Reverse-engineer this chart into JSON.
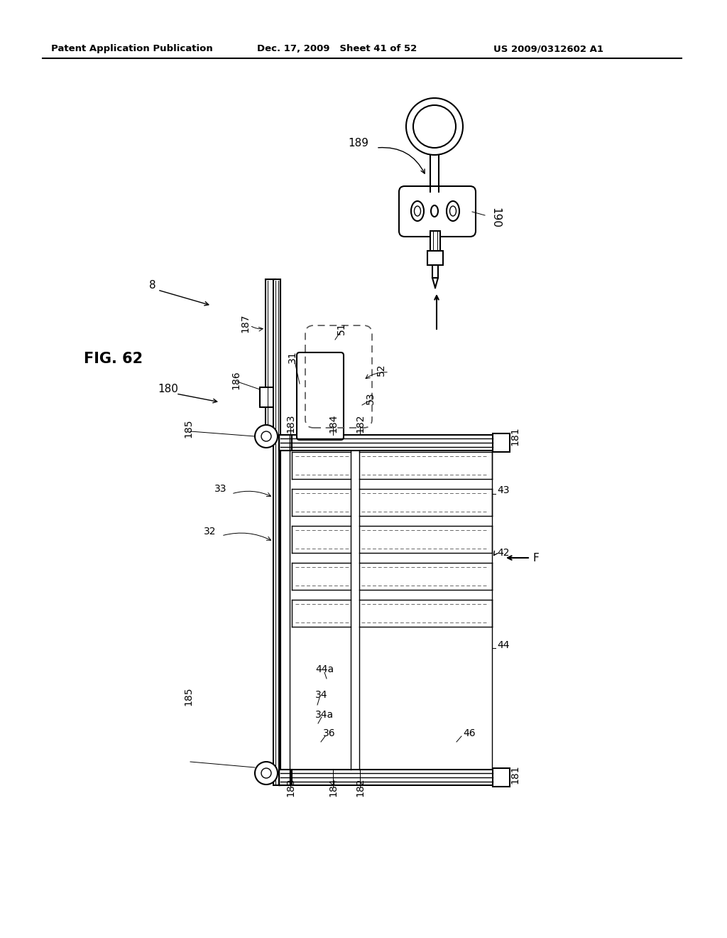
{
  "bg_color": "#ffffff",
  "line_color": "#000000",
  "header_left": "Patent Application Publication",
  "header_mid": "Dec. 17, 2009   Sheet 41 of 52",
  "header_right": "US 2009/0312602 A1"
}
